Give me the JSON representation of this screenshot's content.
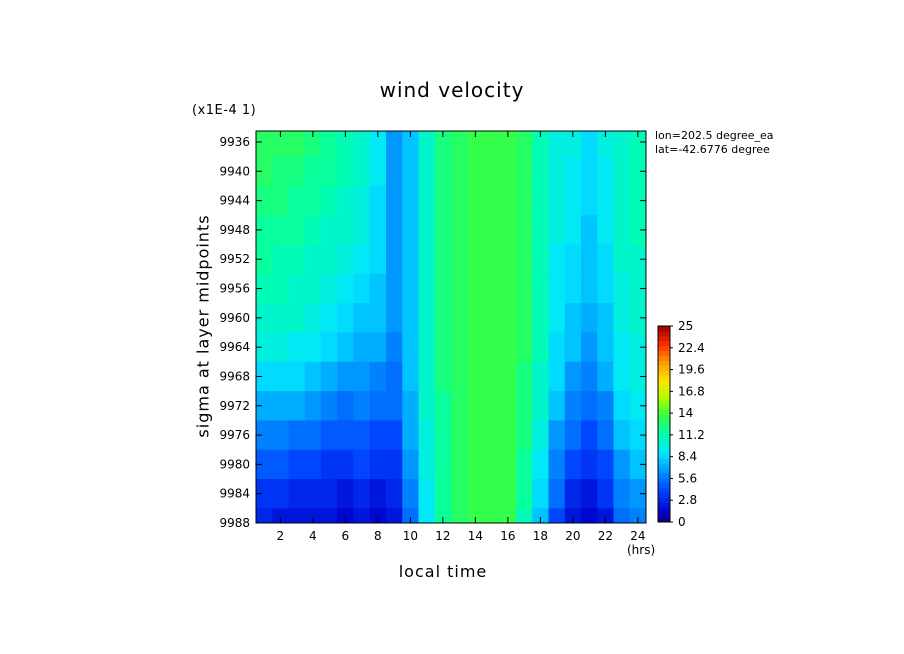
{
  "chart_data": {
    "type": "heatmap",
    "title": "wind velocity",
    "scale_note": "(x1E-4 1)",
    "xlabel": "local time",
    "xunits": "(hrs)",
    "ylabel": "sigma at layer midpoints",
    "info_lines": [
      "lon=202.5 degree_ea",
      "lat=-42.6776 degree"
    ],
    "x_ticks": [
      "2",
      "4",
      "6",
      "8",
      "10",
      "12",
      "14",
      "16",
      "18",
      "20",
      "22",
      "24"
    ],
    "y_ticks": [
      "9936",
      "9940",
      "9944",
      "9948",
      "9952",
      "9956",
      "9960",
      "9964",
      "9968",
      "9972",
      "9976",
      "9980",
      "9984",
      "9988"
    ],
    "x_range": [
      0.5,
      24.5
    ],
    "y_range": [
      9934.5,
      9988
    ],
    "colorbar": {
      "ticks": [
        "25",
        "22.4",
        "19.6",
        "16.8",
        "14",
        "11.2",
        "8.4",
        "5.6",
        "2.8",
        "0"
      ],
      "min": 0,
      "max": 25
    },
    "x_hours": [
      1,
      2,
      3,
      4,
      5,
      6,
      7,
      8,
      9,
      10,
      11,
      12,
      13,
      14,
      15,
      16,
      17,
      18,
      19,
      20,
      21,
      22,
      23,
      24
    ],
    "y_sigma": [
      9936,
      9940,
      9944,
      9948,
      9952,
      9956,
      9960,
      9964,
      9968,
      9972,
      9976,
      9980,
      9984,
      9988
    ],
    "values": [
      [
        12.8,
        12.8,
        12.6,
        12.2,
        11.8,
        11.2,
        10.6,
        9.0,
        6.5,
        8.0,
        10.5,
        12.0,
        12.8,
        13.3,
        13.5,
        13.3,
        12.6,
        11.2,
        9.5,
        9.5,
        8.5,
        9.5,
        10.5,
        11.0
      ],
      [
        12.6,
        12.4,
        12.2,
        11.8,
        11.4,
        10.8,
        10.2,
        8.8,
        6.5,
        8.0,
        10.5,
        12.0,
        12.8,
        13.3,
        13.5,
        13.3,
        12.6,
        11.2,
        9.5,
        9.3,
        8.4,
        9.3,
        10.4,
        10.9
      ],
      [
        12.2,
        12.0,
        11.8,
        11.4,
        11.0,
        10.4,
        9.8,
        8.6,
        6.5,
        8.0,
        10.5,
        12.0,
        12.8,
        13.3,
        13.5,
        13.3,
        12.6,
        11.2,
        9.5,
        9.1,
        8.3,
        9.1,
        10.3,
        10.8
      ],
      [
        11.8,
        11.6,
        11.4,
        11.0,
        10.6,
        10.0,
        9.4,
        8.4,
        6.5,
        8.0,
        10.5,
        12.0,
        12.8,
        13.3,
        13.5,
        13.3,
        12.6,
        11.2,
        9.4,
        8.9,
        8.1,
        8.9,
        10.2,
        10.7
      ],
      [
        11.4,
        11.2,
        11.0,
        10.6,
        10.2,
        9.6,
        9.0,
        8.2,
        6.5,
        8.0,
        10.5,
        12.0,
        12.8,
        13.3,
        13.5,
        13.3,
        12.6,
        11.2,
        9.3,
        8.7,
        7.9,
        8.7,
        10.1,
        10.6
      ],
      [
        11.0,
        10.8,
        10.6,
        10.2,
        9.8,
        9.2,
        8.5,
        8.0,
        6.4,
        8.0,
        10.5,
        12.0,
        12.8,
        13.3,
        13.5,
        13.3,
        12.6,
        11.1,
        9.2,
        8.4,
        7.6,
        8.4,
        9.9,
        10.4
      ],
      [
        10.4,
        10.2,
        10.0,
        9.6,
        9.2,
        8.6,
        8.0,
        7.6,
        6.3,
        7.9,
        10.4,
        12.0,
        12.8,
        13.3,
        13.5,
        13.3,
        12.6,
        11.0,
        9.0,
        8.0,
        7.2,
        8.0,
        9.7,
        10.2
      ],
      [
        9.6,
        9.4,
        9.2,
        8.8,
        8.4,
        7.8,
        7.2,
        7.0,
        6.0,
        7.8,
        10.3,
        11.9,
        12.8,
        13.3,
        13.5,
        13.3,
        12.5,
        10.8,
        8.7,
        7.5,
        6.7,
        7.5,
        9.3,
        9.9
      ],
      [
        8.6,
        8.4,
        8.2,
        7.8,
        7.4,
        6.8,
        6.6,
        6.2,
        5.6,
        7.6,
        10.2,
        11.9,
        12.8,
        13.3,
        13.5,
        13.3,
        12.4,
        10.5,
        8.2,
        6.8,
        6.0,
        6.9,
        8.9,
        9.5
      ],
      [
        7.4,
        7.2,
        7.0,
        6.6,
        6.2,
        5.6,
        5.8,
        5.2,
        5.0,
        7.3,
        10.0,
        11.8,
        12.8,
        13.3,
        13.5,
        13.3,
        12.2,
        10.1,
        7.6,
        6.0,
        5.2,
        6.1,
        8.3,
        9.0
      ],
      [
        6.0,
        5.8,
        5.6,
        5.2,
        4.8,
        4.4,
        4.8,
        4.2,
        4.2,
        6.9,
        9.8,
        11.7,
        12.8,
        13.3,
        13.5,
        13.3,
        12.0,
        9.6,
        6.8,
        5.0,
        4.2,
        5.2,
        7.6,
        8.3
      ],
      [
        4.6,
        4.4,
        4.2,
        3.8,
        3.6,
        3.2,
        3.8,
        3.2,
        3.4,
        6.4,
        9.5,
        11.6,
        12.7,
        13.3,
        13.5,
        13.3,
        11.7,
        9.0,
        5.9,
        4.0,
        3.2,
        4.2,
        6.8,
        7.5
      ],
      [
        3.4,
        3.2,
        3.0,
        2.8,
        2.6,
        2.4,
        3.0,
        2.3,
        2.6,
        5.9,
        9.2,
        11.5,
        12.7,
        13.3,
        13.5,
        13.3,
        11.4,
        8.4,
        5.0,
        3.0,
        2.2,
        3.2,
        5.9,
        6.7
      ],
      [
        2.6,
        2.4,
        2.2,
        2.0,
        1.9,
        1.8,
        2.4,
        1.6,
        2.0,
        5.5,
        9.0,
        11.4,
        12.7,
        13.3,
        13.5,
        13.3,
        11.1,
        7.9,
        4.3,
        2.3,
        1.4,
        2.4,
        5.2,
        6.0
      ]
    ]
  }
}
